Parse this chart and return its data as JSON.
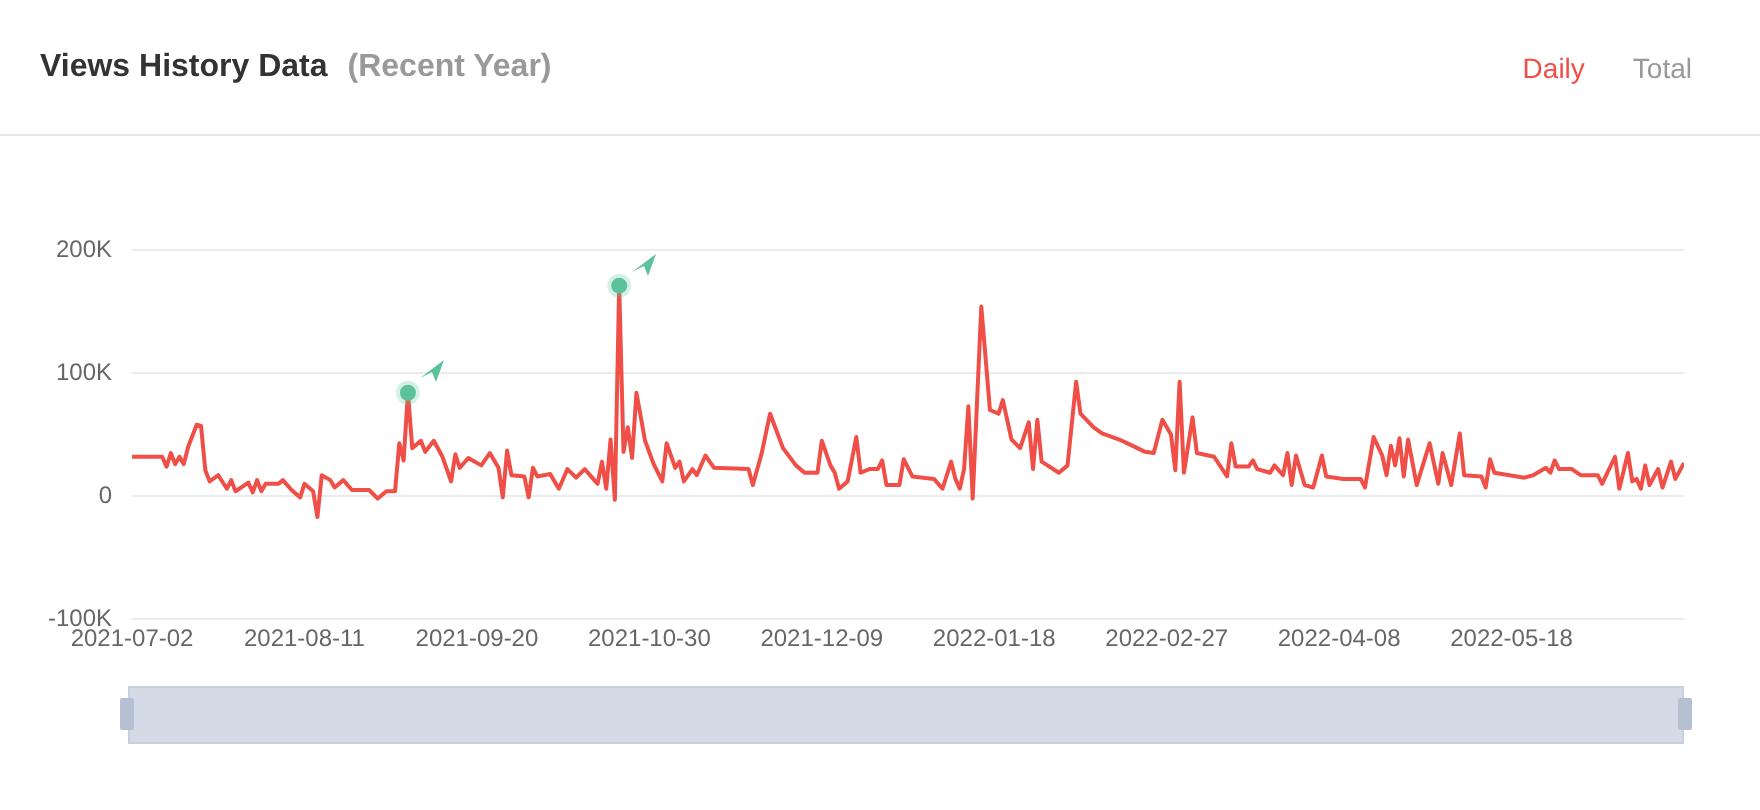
{
  "chart_data": {
    "type": "line",
    "title": "Views History Data",
    "subtitle": "(Recent Year)",
    "annotations": [
      "Daily",
      "Total"
    ],
    "xlim": [
      "2021-07-02",
      "2022-06-27"
    ],
    "xticks": [
      "2021-07-02",
      "2021-08-11",
      "2021-09-20",
      "2021-10-30",
      "2021-12-09",
      "2022-01-18",
      "2022-02-27",
      "2022-04-08",
      "2022-05-18"
    ],
    "ylim": [
      -100,
      200
    ],
    "yticks": [
      {
        "value": -100,
        "label": "-100K"
      },
      {
        "value": 0,
        "label": "0"
      },
      {
        "value": 100,
        "label": "100K"
      },
      {
        "value": 200,
        "label": "200K"
      }
    ],
    "grid": "y",
    "legend": false,
    "series": [
      {
        "type": "line",
        "color": "#ef4f46",
        "marker": "none",
        "x": [
          "2021-07-02",
          "2021-07-09",
          "2021-07-10",
          "2021-07-11",
          "2021-07-12",
          "2021-07-13",
          "2021-07-14",
          "2021-07-15",
          "2021-07-17",
          "2021-07-18",
          "2021-07-19",
          "2021-07-20",
          "2021-07-22",
          "2021-07-24",
          "2021-07-25",
          "2021-07-26",
          "2021-07-29",
          "2021-07-30",
          "2021-07-31",
          "2021-08-01",
          "2021-08-02",
          "2021-08-05",
          "2021-08-06",
          "2021-08-08",
          "2021-08-10",
          "2021-08-11",
          "2021-08-13",
          "2021-08-14",
          "2021-08-15",
          "2021-08-17",
          "2021-08-18",
          "2021-08-20",
          "2021-08-22",
          "2021-08-26",
          "2021-08-28",
          "2021-08-30",
          "2021-09-01",
          "2021-09-02",
          "2021-09-03",
          "2021-09-04",
          "2021-09-05",
          "2021-09-07",
          "2021-09-08",
          "2021-09-10",
          "2021-09-12",
          "2021-09-14",
          "2021-09-15",
          "2021-09-16",
          "2021-09-18",
          "2021-09-21",
          "2021-09-23",
          "2021-09-25",
          "2021-09-26",
          "2021-09-27",
          "2021-09-28",
          "2021-10-01",
          "2021-10-02",
          "2021-10-03",
          "2021-10-04",
          "2021-10-07",
          "2021-10-09",
          "2021-10-11",
          "2021-10-13",
          "2021-10-15",
          "2021-10-18",
          "2021-10-19",
          "2021-10-20",
          "2021-10-21",
          "2021-10-22",
          "2021-10-23",
          "2021-10-24",
          "2021-10-25",
          "2021-10-26",
          "2021-10-27",
          "2021-10-29",
          "2021-10-31",
          "2021-11-02",
          "2021-11-03",
          "2021-11-05",
          "2021-11-06",
          "2021-11-07",
          "2021-11-09",
          "2021-11-10",
          "2021-11-12",
          "2021-11-14",
          "2021-11-22",
          "2021-11-23",
          "2021-11-25",
          "2021-11-27",
          "2021-11-30",
          "2021-12-03",
          "2021-12-05",
          "2021-12-08",
          "2021-12-09",
          "2021-12-11",
          "2021-12-12",
          "2021-12-13",
          "2021-12-15",
          "2021-12-17",
          "2021-12-18",
          "2021-12-20",
          "2021-12-22",
          "2021-12-23",
          "2021-12-24",
          "2021-12-27",
          "2021-12-28",
          "2021-12-30",
          "2022-01-04",
          "2022-01-06",
          "2022-01-08",
          "2022-01-09",
          "2022-01-10",
          "2022-01-11",
          "2022-01-12",
          "2022-01-13",
          "2022-01-15",
          "2022-01-17",
          "2022-01-19",
          "2022-01-20",
          "2022-01-22",
          "2022-01-24",
          "2022-01-26",
          "2022-01-27",
          "2022-01-28",
          "2022-01-29",
          "2022-02-02",
          "2022-02-04",
          "2022-02-06",
          "2022-02-07",
          "2022-02-10",
          "2022-02-12",
          "2022-02-16",
          "2022-02-19",
          "2022-02-22",
          "2022-02-24",
          "2022-02-26",
          "2022-02-28",
          "2022-03-01",
          "2022-03-02",
          "2022-03-03",
          "2022-03-05",
          "2022-03-06",
          "2022-03-10",
          "2022-03-13",
          "2022-03-14",
          "2022-03-15",
          "2022-03-18",
          "2022-03-19",
          "2022-03-20",
          "2022-03-23",
          "2022-03-24",
          "2022-03-26",
          "2022-03-27",
          "2022-03-28",
          "2022-03-29",
          "2022-03-31",
          "2022-04-02",
          "2022-04-04",
          "2022-04-05",
          "2022-04-09",
          "2022-04-13",
          "2022-04-14",
          "2022-04-16",
          "2022-04-18",
          "2022-04-19",
          "2022-04-20",
          "2022-04-21",
          "2022-04-22",
          "2022-04-23",
          "2022-04-24",
          "2022-04-26",
          "2022-04-29",
          "2022-05-01",
          "2022-05-02",
          "2022-05-04",
          "2022-05-06",
          "2022-05-07",
          "2022-05-11",
          "2022-05-12",
          "2022-05-13",
          "2022-05-14",
          "2022-05-21",
          "2022-05-23",
          "2022-05-26",
          "2022-05-27",
          "2022-05-28",
          "2022-05-29",
          "2022-06-01",
          "2022-06-03",
          "2022-06-07",
          "2022-06-08",
          "2022-06-11",
          "2022-06-12",
          "2022-06-14",
          "2022-06-15",
          "2022-06-16",
          "2022-06-17",
          "2022-06-18",
          "2022-06-19",
          "2022-06-21",
          "2022-06-22",
          "2022-06-24",
          "2022-06-25",
          "2022-06-27"
        ],
        "values": [
          32,
          32,
          24,
          35,
          26,
          32,
          26,
          40,
          58,
          57,
          21,
          12,
          17,
          6,
          13,
          4,
          11,
          3,
          13,
          4,
          10,
          10,
          13,
          5,
          -1,
          10,
          4,
          -17,
          17,
          13,
          7,
          13,
          5,
          5,
          -2,
          4,
          4,
          43,
          29,
          84,
          39,
          45,
          36,
          45,
          32,
          12,
          34,
          23,
          31,
          25,
          35,
          23,
          -1,
          37,
          17,
          16,
          -1,
          23,
          16,
          18,
          6,
          22,
          15,
          22,
          10,
          28,
          6,
          46,
          -3,
          171,
          36,
          56,
          31,
          84,
          45,
          26,
          12,
          43,
          23,
          28,
          12,
          22,
          17,
          33,
          23,
          22,
          9,
          34,
          67,
          39,
          25,
          19,
          19,
          45,
          25,
          19,
          6,
          12,
          48,
          19,
          22,
          22,
          29,
          9,
          9,
          30,
          16,
          14,
          6,
          28,
          14,
          6,
          22,
          73,
          -2,
          154,
          70,
          67,
          78,
          46,
          39,
          60,
          22,
          62,
          28,
          19,
          25,
          93,
          67,
          56,
          51,
          46,
          41,
          36,
          35,
          62,
          50,
          21,
          93,
          19,
          64,
          35,
          32,
          16,
          43,
          24,
          24,
          29,
          22,
          19,
          25,
          17,
          35,
          9,
          33,
          9,
          7,
          33,
          16,
          14,
          14,
          7,
          48,
          33,
          17,
          41,
          25,
          47,
          16,
          46,
          9,
          43,
          10,
          35,
          9,
          51,
          17,
          16,
          7,
          30,
          19,
          15,
          17,
          23,
          19,
          29,
          22,
          22,
          17,
          17,
          10,
          32,
          6,
          35,
          12,
          14,
          6,
          25,
          9,
          22,
          7,
          28,
          14,
          27
        ]
      },
      {
        "type": "scatter",
        "color": "#5cc29c",
        "marker": "circle",
        "x": [
          "2021-09-04",
          "2021-10-23"
        ],
        "values": [
          84,
          171
        ]
      }
    ]
  }
}
